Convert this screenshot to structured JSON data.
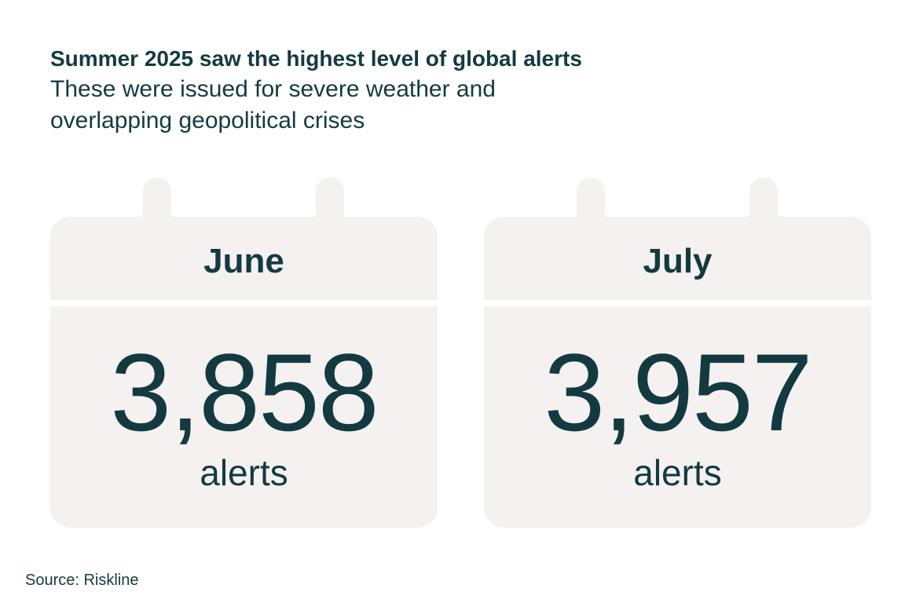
{
  "header": {
    "title": "Summer 2025 saw the highest level of global alerts",
    "subtitle": "These were issued for severe weather and overlapping geopolitical crises"
  },
  "cards": [
    {
      "month": "June",
      "count": "3,858",
      "unit": "alerts"
    },
    {
      "month": "July",
      "count": "3,957",
      "unit": "alerts"
    }
  ],
  "footer": {
    "source": "Source: Riskline"
  },
  "colors": {
    "text": "#143a41",
    "card_background": "#f4f1f0",
    "page_background": "#ffffff"
  }
}
